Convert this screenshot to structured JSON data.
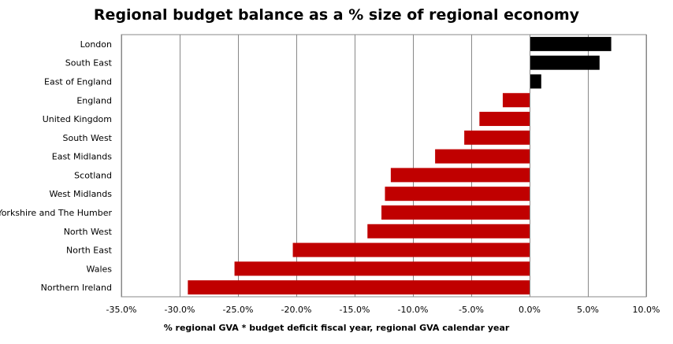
{
  "chart_data": {
    "type": "bar",
    "orientation": "horizontal",
    "title": "Regional budget balance as a % size of regional economy",
    "xlabel": "% regional GVA * budget deficit fiscal year, regional GVA calendar year",
    "ylabel": "",
    "categories": [
      "London",
      "South East",
      "East of England",
      "England",
      "United Kingdom",
      "South West",
      "East Midlands",
      "Scotland",
      "West Midlands",
      "Yorkshire and The Humber",
      "North West",
      "North East",
      "Wales",
      "Northern Ireland"
    ],
    "values": [
      7.0,
      6.0,
      1.0,
      -2.3,
      -4.3,
      -5.6,
      -8.1,
      -11.9,
      -12.4,
      -12.7,
      -13.9,
      -20.3,
      -25.3,
      -29.3
    ],
    "bar_colors": [
      "#000000",
      "#000000",
      "#000000",
      "#c00000",
      "#c00000",
      "#c00000",
      "#c00000",
      "#c00000",
      "#c00000",
      "#c00000",
      "#c00000",
      "#c00000",
      "#c00000",
      "#c00000"
    ],
    "xlim": [
      -35,
      10
    ],
    "xticks": [
      -35,
      -30,
      -25,
      -20,
      -15,
      -10,
      -5,
      0,
      5,
      10
    ],
    "xtick_labels": [
      "-35.0%",
      "-30.0%",
      "-25.0%",
      "-20.0%",
      "-15.0%",
      "-10.0%",
      "-5.0%",
      "0.0%",
      "5.0%",
      "10.0%"
    ],
    "grid": "vertical",
    "legend": "none"
  }
}
